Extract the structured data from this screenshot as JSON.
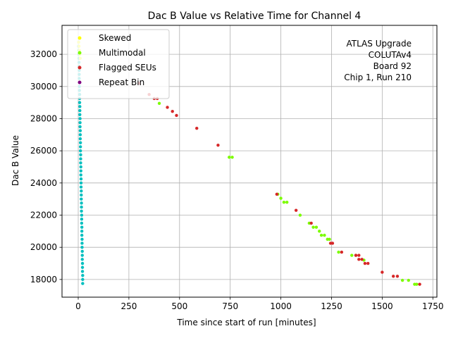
{
  "chart_data": {
    "type": "scatter",
    "title": "Dac B Value vs Relative Time for Channel 4",
    "xlabel": "Time since start of run [minutes]",
    "ylabel": "Dac B Value",
    "xlim": [
      -80,
      1770
    ],
    "ylim": [
      16900,
      33800
    ],
    "xticks": [
      0,
      250,
      500,
      750,
      1000,
      1250,
      1500,
      1750
    ],
    "yticks": [
      18000,
      20000,
      22000,
      24000,
      26000,
      28000,
      30000,
      32000
    ],
    "grid": true,
    "legend_position": "top-left",
    "annotation": [
      "ATLAS Upgrade",
      "COLUTAv4",
      "Board 92",
      "Chip 1, Run 210"
    ],
    "series": [
      {
        "name": "Skewed",
        "color": "#ffff00",
        "points": [
          [
            2,
            32750
          ],
          [
            4,
            32500
          ],
          [
            6,
            32250
          ],
          [
            8,
            32000
          ],
          [
            10,
            31750
          ]
        ]
      },
      {
        "name": "Multimodal",
        "color": "#7cfc00",
        "points": [
          [
            400,
            28950
          ],
          [
            745,
            25600
          ],
          [
            760,
            25600
          ],
          [
            985,
            23300
          ],
          [
            1000,
            23050
          ],
          [
            1015,
            22800
          ],
          [
            1030,
            22800
          ],
          [
            1095,
            22000
          ],
          [
            1140,
            21500
          ],
          [
            1160,
            21250
          ],
          [
            1175,
            21250
          ],
          [
            1190,
            21000
          ],
          [
            1200,
            20750
          ],
          [
            1215,
            20750
          ],
          [
            1230,
            20500
          ],
          [
            1240,
            20500
          ],
          [
            1285,
            19700
          ],
          [
            1350,
            19500
          ],
          [
            1370,
            19500
          ],
          [
            1410,
            19200
          ],
          [
            1600,
            17950
          ],
          [
            1630,
            17950
          ],
          [
            1660,
            17700
          ],
          [
            1670,
            17700
          ]
        ]
      },
      {
        "name": "Flagged SEUs",
        "color": "#d62728",
        "points": [
          [
            300,
            30200
          ],
          [
            350,
            29500
          ],
          [
            375,
            29250
          ],
          [
            390,
            29250
          ],
          [
            440,
            28700
          ],
          [
            465,
            28450
          ],
          [
            485,
            28200
          ],
          [
            585,
            27400
          ],
          [
            690,
            26350
          ],
          [
            980,
            23300
          ],
          [
            1075,
            22300
          ],
          [
            1150,
            21500
          ],
          [
            1245,
            20250
          ],
          [
            1255,
            20250
          ],
          [
            1300,
            19700
          ],
          [
            1370,
            19500
          ],
          [
            1385,
            19500
          ],
          [
            1385,
            19250
          ],
          [
            1400,
            19250
          ],
          [
            1415,
            19000
          ],
          [
            1430,
            19000
          ],
          [
            1500,
            18450
          ],
          [
            1555,
            18200
          ],
          [
            1575,
            18200
          ],
          [
            1685,
            17700
          ]
        ]
      },
      {
        "name": "Repeat Bin",
        "color": "#800080",
        "points": []
      },
      {
        "name": "",
        "color": "#00bfbf",
        "points": [
          [
            2,
            32750
          ],
          [
            2,
            32500
          ],
          [
            3,
            32250
          ],
          [
            3,
            32000
          ],
          [
            4,
            31750
          ],
          [
            4,
            31500
          ],
          [
            4,
            31250
          ],
          [
            5,
            31000
          ],
          [
            5,
            30750
          ],
          [
            5,
            30500
          ],
          [
            6,
            30250
          ],
          [
            6,
            30000
          ],
          [
            6,
            29750
          ],
          [
            7,
            29500
          ],
          [
            7,
            29250
          ],
          [
            7,
            29000
          ],
          [
            8,
            28750
          ],
          [
            8,
            28500
          ],
          [
            8,
            28250
          ],
          [
            9,
            28000
          ],
          [
            9,
            27750
          ],
          [
            9,
            27500
          ],
          [
            10,
            27250
          ],
          [
            10,
            27000
          ],
          [
            10,
            26750
          ],
          [
            11,
            26500
          ],
          [
            11,
            26250
          ],
          [
            11,
            26000
          ],
          [
            12,
            25750
          ],
          [
            12,
            25500
          ],
          [
            12,
            25250
          ],
          [
            13,
            25000
          ],
          [
            13,
            24750
          ],
          [
            13,
            24500
          ],
          [
            14,
            24250
          ],
          [
            14,
            24000
          ],
          [
            14,
            23750
          ],
          [
            15,
            23500
          ],
          [
            15,
            23250
          ],
          [
            15,
            23000
          ],
          [
            16,
            22750
          ],
          [
            16,
            22500
          ],
          [
            16,
            22250
          ],
          [
            17,
            22000
          ],
          [
            17,
            21750
          ],
          [
            17,
            21500
          ],
          [
            18,
            21250
          ],
          [
            18,
            21000
          ],
          [
            18,
            20750
          ],
          [
            19,
            20500
          ],
          [
            19,
            20250
          ],
          [
            19,
            20000
          ],
          [
            20,
            19750
          ],
          [
            20,
            19500
          ],
          [
            20,
            19250
          ],
          [
            21,
            19000
          ],
          [
            21,
            18750
          ],
          [
            21,
            18500
          ],
          [
            22,
            18250
          ],
          [
            22,
            18000
          ],
          [
            22,
            17750
          ]
        ]
      }
    ]
  }
}
